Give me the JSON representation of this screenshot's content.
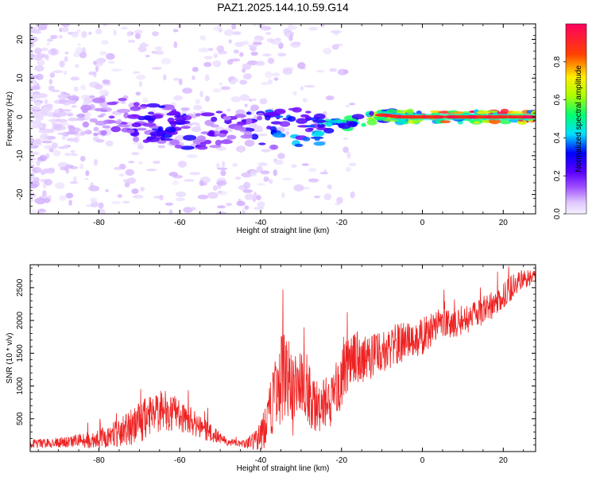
{
  "chart_data": [
    {
      "type": "heatmap",
      "title": "PAZ1.2025.144.10.59.G14",
      "xlabel": "Height of straight line (km)",
      "ylabel": "Frequency (Hz)",
      "xlim": [
        -97,
        28
      ],
      "ylim": [
        -25,
        24
      ],
      "xticks": [
        -80,
        -60,
        -40,
        -20,
        0,
        20
      ],
      "yticks": [
        -20,
        -10,
        0,
        10,
        20
      ],
      "colorbar": {
        "label": "Normalized spectral amplitude",
        "range": [
          0.0,
          1.0
        ],
        "ticks": [
          0.0,
          0.2,
          0.4,
          0.6,
          0.8
        ],
        "colors": [
          "#f4f0ff",
          "#e0c8ff",
          "#b070ff",
          "#6a00ff",
          "#0000ff",
          "#00e0ff",
          "#00ff70",
          "#aaff00",
          "#ffee00",
          "#ff4000",
          "#ff0060"
        ]
      },
      "ridge": {
        "x": [
          -95,
          -90,
          -85,
          -80,
          -75,
          -70,
          -65,
          -60,
          -55,
          -50,
          -45,
          -40,
          -35,
          -30,
          -25,
          -20,
          -15,
          -10,
          -5,
          0,
          5,
          10,
          15,
          20,
          25,
          28
        ],
        "y": [
          0.5,
          0.5,
          0.5,
          0.3,
          0,
          -1,
          -2,
          -3,
          -3,
          -2.5,
          -2.5,
          -2.5,
          -3,
          -3,
          -2.5,
          -2,
          -1.2,
          0.5,
          0,
          0,
          0,
          0,
          0,
          0,
          0,
          0
        ],
        "amplitude": [
          0.05,
          0.1,
          0.15,
          0.2,
          0.3,
          0.35,
          0.4,
          0.4,
          0.35,
          0.3,
          0.35,
          0.4,
          0.45,
          0.5,
          0.55,
          0.6,
          0.65,
          0.72,
          0.8,
          0.9,
          0.92,
          0.95,
          0.97,
          0.98,
          1.0,
          1.0
        ]
      }
    },
    {
      "type": "line",
      "xlabel": "Height of straight line (km)",
      "ylabel": "SNR (10 * v/v)",
      "xlim": [
        -97,
        28
      ],
      "ylim": [
        0,
        2850
      ],
      "xticks": [
        -80,
        -60,
        -40,
        -20,
        0,
        20
      ],
      "yticks": [
        500,
        1000,
        1500,
        2000,
        2500
      ],
      "color": "#ee2222",
      "x": [
        -97,
        -92,
        -87,
        -82,
        -77,
        -72,
        -68,
        -64,
        -60,
        -56,
        -52,
        -48,
        -44,
        -41,
        -38,
        -36,
        -34,
        -32,
        -30,
        -28,
        -26,
        -24,
        -22,
        -20,
        -18,
        -15,
        -12,
        -9,
        -6,
        -3,
        0,
        3,
        6,
        9,
        12,
        15,
        18,
        21,
        24,
        28
      ],
      "y": [
        120,
        130,
        160,
        170,
        240,
        380,
        520,
        640,
        560,
        420,
        260,
        140,
        110,
        180,
        520,
        900,
        1250,
        850,
        1100,
        900,
        650,
        750,
        800,
        1150,
        1500,
        1400,
        1450,
        1550,
        1650,
        1700,
        1750,
        1900,
        1950,
        2000,
        2050,
        2150,
        2250,
        2450,
        2600,
        2700
      ],
      "noise": [
        70,
        75,
        95,
        120,
        180,
        280,
        330,
        320,
        260,
        190,
        140,
        60,
        60,
        160,
        480,
        620,
        720,
        620,
        560,
        520,
        420,
        380,
        420,
        540,
        480,
        360,
        340,
        320,
        320,
        300,
        280,
        260,
        240,
        240,
        230,
        220,
        220,
        200,
        160,
        120
      ]
    }
  ]
}
